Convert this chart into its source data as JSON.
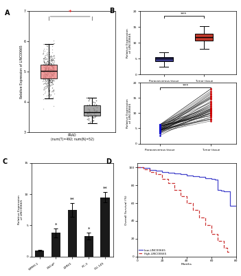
{
  "panel_A": {
    "tumor_color": "#F08080",
    "normal_color": "#888888",
    "ylabel": "Relative Expression of LINC00665",
    "xlabel": "PRAD\n(num(T)=492; num(N)=52)",
    "ylim": [
      3.0,
      7.0
    ],
    "yticks": [
      3,
      4,
      5,
      6,
      7
    ],
    "sig_label": "*",
    "sig_color": "#FF0000"
  },
  "panel_B_box": {
    "para_color": "#3B3B8C",
    "tumor_color": "#C0392B",
    "ylabel": "Relative Expression\nof LINC00665",
    "ylim": [
      0,
      20
    ],
    "yticks": [
      0,
      5,
      10,
      15,
      20
    ],
    "xticks": [
      "Paracancerous tissue",
      "Tumor tissue"
    ],
    "sig_label": "***"
  },
  "panel_B_line": {
    "line_color": "#000000",
    "dot_para_color": "#0000CC",
    "dot_tumor_color": "#CC0000",
    "ylabel": "Relative Expression\nof LINC00665",
    "ylim": [
      0,
      20
    ],
    "yticks": [
      0,
      5,
      10,
      15,
      20
    ],
    "sig_label": "***"
  },
  "panel_C": {
    "categories": [
      "WPMY-1",
      "LNCaP",
      "22RV1",
      "PC-3",
      "DU-145"
    ],
    "values": [
      1.0,
      3.8,
      7.5,
      3.3,
      9.5
    ],
    "errors": [
      0.08,
      0.7,
      1.1,
      0.55,
      0.8
    ],
    "bar_color": "#1a1a1a",
    "ylabel": "Relative Expression\nof LINC00665",
    "ylim": [
      0,
      15
    ],
    "yticks": [
      0,
      5,
      10,
      15
    ],
    "sig_labels": [
      "",
      "*",
      "**",
      "*",
      "**"
    ]
  },
  "panel_D": {
    "low_color": "#4444CC",
    "high_color": "#CC3333",
    "xlabel": "Months",
    "ylabel": "Overall Survival (%)",
    "ylim": [
      0,
      105
    ],
    "xlim": [
      0,
      80
    ],
    "legend_low": "Low-LINC00665",
    "legend_high": "High-LINC00665"
  }
}
